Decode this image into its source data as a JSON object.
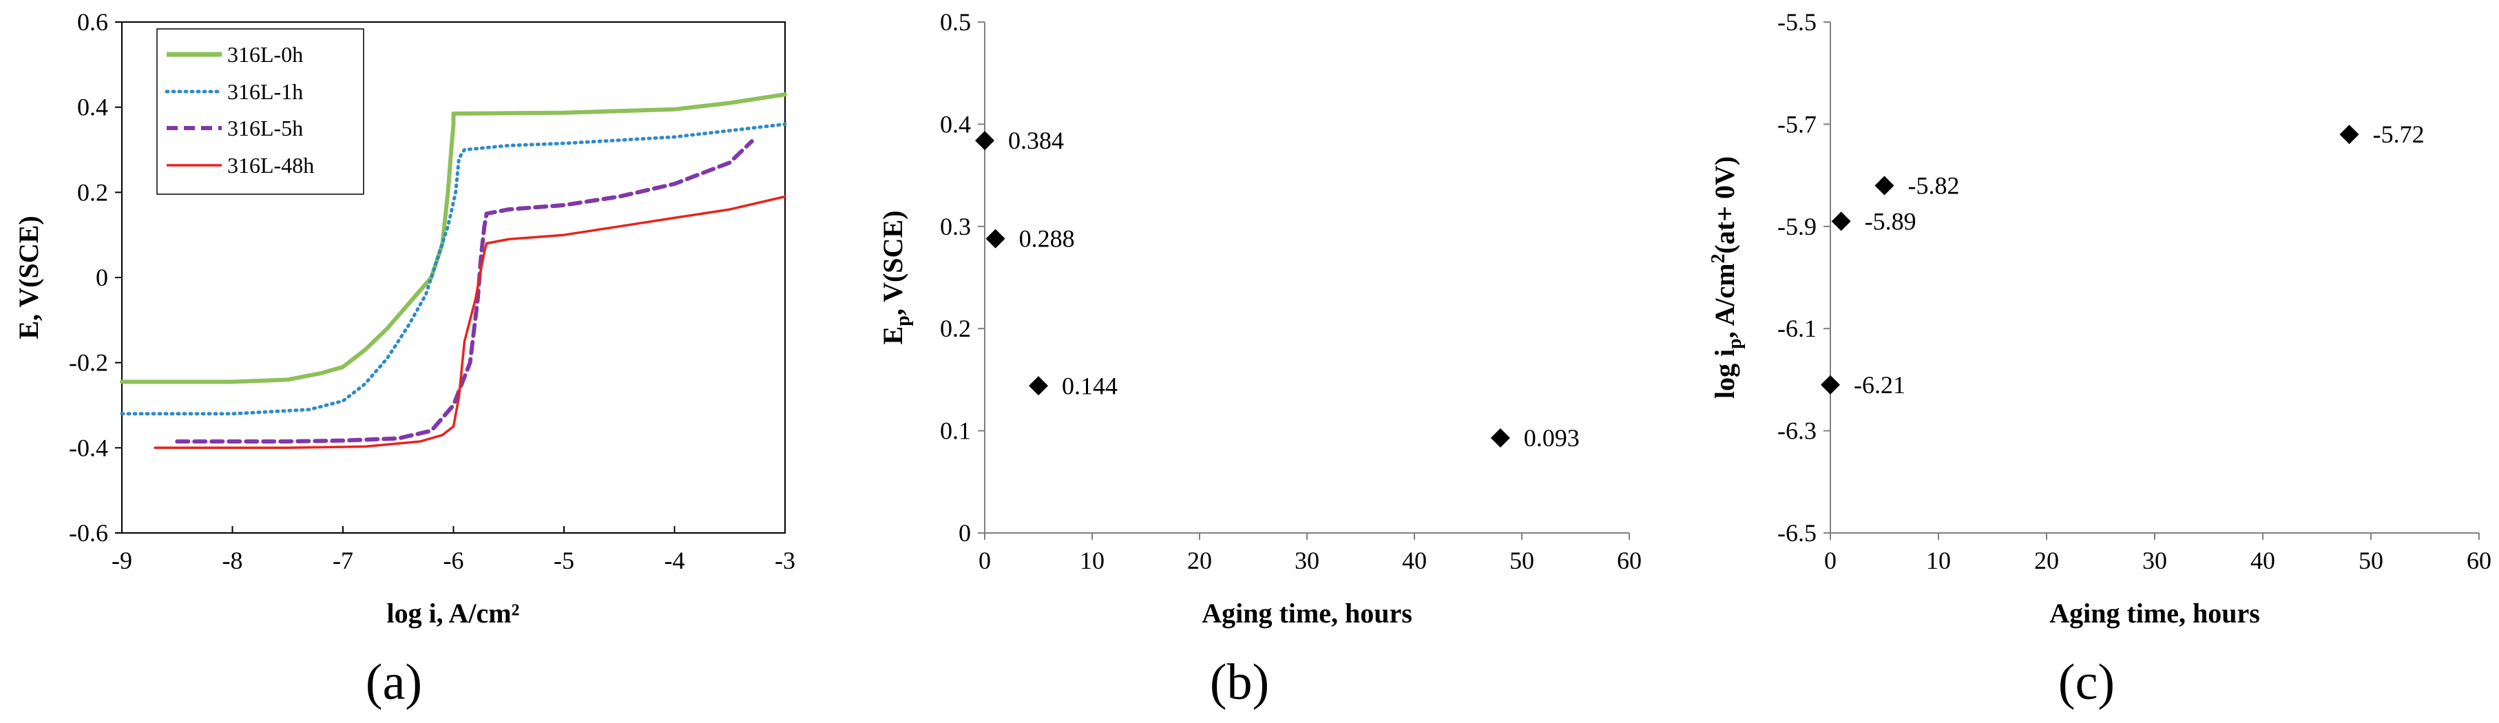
{
  "panels": {
    "a": {
      "label": "(a)",
      "xlabel": "log i, A/cm²",
      "ylabel": "E, V(SCE)",
      "xticks": [
        "-9",
        "-8",
        "-7",
        "-6",
        "-5",
        "-4",
        "-3"
      ],
      "yticks": [
        "0.6",
        "0.4",
        "0.2",
        "0",
        "-0.2",
        "-0.4",
        "-0.6"
      ]
    },
    "b": {
      "label": "(b)",
      "xlabel": "Aging time, hours",
      "ylabel_main": "E",
      "ylabel_sub": "p",
      "ylabel_rest": ", V(SCE)",
      "xticks": [
        "0",
        "10",
        "20",
        "30",
        "40",
        "50",
        "60"
      ],
      "yticks": [
        "0.5",
        "0.4",
        "0.3",
        "0.2",
        "0.1",
        "0"
      ]
    },
    "c": {
      "label": "(c)",
      "xlabel": "Aging time, hours",
      "ylabel_main": "log i",
      "ylabel_sub": "p",
      "ylabel_mid": ", A/cm",
      "ylabel_sup": "2",
      "ylabel_rest": "(at+ 0V)",
      "xticks": [
        "0",
        "10",
        "20",
        "30",
        "40",
        "50",
        "60"
      ],
      "yticks": [
        "-5.5",
        "-5.7",
        "-5.9",
        "-6.1",
        "-6.3",
        "-6.5"
      ]
    }
  },
  "chart_data": [
    {
      "type": "line",
      "xlabel": "log i, A/cm²",
      "ylabel": "E, V(SCE)",
      "xlim": [
        -9,
        -3
      ],
      "ylim": [
        -0.6,
        0.6
      ],
      "grid": false,
      "legend_position": "top-left",
      "series": [
        {
          "name": "316L-0h",
          "color": "#8dc058",
          "style": "solid",
          "x": [
            -9.0,
            -8.0,
            -7.5,
            -7.2,
            -7.0,
            -6.8,
            -6.6,
            -6.4,
            -6.2,
            -6.1,
            -6.05,
            -6.02,
            -6.0,
            -6.0,
            -5.9,
            -5.0,
            -4.0,
            -3.5,
            -3.0
          ],
          "y": [
            -0.245,
            -0.245,
            -0.24,
            -0.225,
            -0.21,
            -0.17,
            -0.12,
            -0.06,
            0.0,
            0.08,
            0.2,
            0.3,
            0.36,
            0.385,
            0.385,
            0.387,
            0.395,
            0.41,
            0.43
          ]
        },
        {
          "name": "316L-1h",
          "color": "#2e8bc6",
          "style": "dotted",
          "x": [
            -9.0,
            -8.0,
            -7.3,
            -7.0,
            -6.8,
            -6.6,
            -6.4,
            -6.25,
            -6.15,
            -6.05,
            -5.98,
            -5.95,
            -5.9,
            -5.5,
            -5.0,
            -4.0,
            -3.5,
            -3.0
          ],
          "y": [
            -0.32,
            -0.32,
            -0.31,
            -0.29,
            -0.25,
            -0.19,
            -0.11,
            -0.04,
            0.04,
            0.12,
            0.2,
            0.28,
            0.3,
            0.31,
            0.315,
            0.33,
            0.345,
            0.36
          ]
        },
        {
          "name": "316L-5h",
          "color": "#7f39a8",
          "style": "dashed",
          "x": [
            -8.5,
            -7.5,
            -7.0,
            -6.5,
            -6.2,
            -6.0,
            -5.85,
            -5.78,
            -5.75,
            -5.72,
            -5.7,
            -5.5,
            -5.0,
            -4.5,
            -4.0,
            -3.5,
            -3.3
          ],
          "y": [
            -0.385,
            -0.385,
            -0.383,
            -0.378,
            -0.36,
            -0.3,
            -0.2,
            -0.05,
            0.05,
            0.12,
            0.15,
            0.16,
            0.17,
            0.19,
            0.22,
            0.27,
            0.32
          ]
        },
        {
          "name": "316L-48h",
          "color": "#e8231c",
          "style": "solid",
          "x": [
            -8.7,
            -7.5,
            -6.8,
            -6.3,
            -6.1,
            -6.0,
            -5.95,
            -5.9,
            -5.8,
            -5.75,
            -5.72,
            -5.7,
            -5.5,
            -5.0,
            -4.5,
            -4.0,
            -3.5,
            -3.0
          ],
          "y": [
            -0.4,
            -0.4,
            -0.397,
            -0.385,
            -0.37,
            -0.35,
            -0.28,
            -0.15,
            -0.05,
            0.02,
            0.06,
            0.08,
            0.09,
            0.1,
            0.12,
            0.14,
            0.16,
            0.19
          ]
        }
      ]
    },
    {
      "type": "scatter",
      "xlabel": "Aging time, hours",
      "ylabel": "Ep, V(SCE)",
      "xlim": [
        0,
        60
      ],
      "ylim": [
        0,
        0.5
      ],
      "grid": false,
      "marker": "diamond",
      "x": [
        0,
        1,
        5,
        48
      ],
      "y": [
        0.384,
        0.288,
        0.144,
        0.093
      ],
      "labels": [
        "0.384",
        "0.288",
        "0.144",
        "0.093"
      ]
    },
    {
      "type": "scatter",
      "xlabel": "Aging time, hours",
      "ylabel": "log ip, A/cm²(at+ 0V)",
      "xlim": [
        0,
        60
      ],
      "ylim": [
        -6.5,
        -5.5
      ],
      "grid": false,
      "marker": "diamond",
      "x": [
        0,
        1,
        5,
        48
      ],
      "y": [
        -6.21,
        -5.89,
        -5.82,
        -5.72
      ],
      "labels": [
        "-6.21",
        "-5.89",
        "-5.82",
        "-5.72"
      ]
    }
  ]
}
